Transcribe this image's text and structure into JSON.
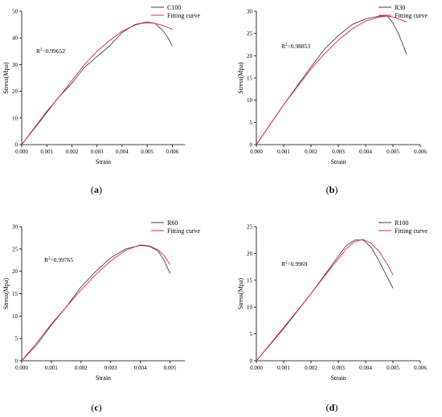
{
  "chart_data": [
    {
      "type": "line",
      "caption": "(a)",
      "xlabel": "Strain",
      "ylabel": "Stress(Mpa)",
      "xlim": [
        0,
        0.0065
      ],
      "ylim": [
        0,
        50
      ],
      "xticks": [
        "0.000",
        "0.001",
        "0.002",
        "0.003",
        "0.004",
        "0.005",
        "0.006"
      ],
      "yticks": [
        "0",
        "10",
        "20",
        "30",
        "40",
        "50"
      ],
      "annotation": "R²=0.99652",
      "legend_position": "top-right",
      "series": [
        {
          "name": "C100",
          "color": "#3b4254",
          "x": [
            0,
            0.001,
            0.0014,
            0.002,
            0.0025,
            0.003,
            0.0035,
            0.004,
            0.0045,
            0.005,
            0.0053,
            0.0056,
            0.0058,
            0.006
          ],
          "y": [
            0,
            12,
            17,
            23,
            29,
            33,
            37,
            42,
            45,
            46,
            45.5,
            43,
            40.5,
            37
          ]
        },
        {
          "name": "Fitting curve",
          "color": "#e5282b",
          "x": [
            0,
            0.001,
            0.0015,
            0.002,
            0.0025,
            0.003,
            0.0035,
            0.004,
            0.0045,
            0.0048,
            0.0052,
            0.0056,
            0.006
          ],
          "y": [
            0,
            12.5,
            18,
            24,
            30,
            35,
            39,
            42.5,
            44.8,
            45.5,
            45.6,
            44.8,
            43.2
          ]
        }
      ]
    },
    {
      "type": "line",
      "caption": "(b)",
      "xlabel": "Strain",
      "ylabel": "Stress(Mpa)",
      "xlim": [
        0,
        0.006
      ],
      "ylim": [
        0,
        30
      ],
      "xticks": [
        "0.000",
        "0.001",
        "0.002",
        "0.003",
        "0.004",
        "0.005",
        "0.006"
      ],
      "yticks": [
        "0",
        "5",
        "10",
        "15",
        "20",
        "25",
        "30"
      ],
      "annotation": "R²=0.98853",
      "legend_position": "top-right",
      "series": [
        {
          "name": "R30",
          "color": "#3b4254",
          "x": [
            0,
            0.001,
            0.002,
            0.0025,
            0.003,
            0.0035,
            0.004,
            0.0045,
            0.0048,
            0.005,
            0.0052,
            0.0055
          ],
          "y": [
            0,
            9,
            17.5,
            21.5,
            24.5,
            27,
            28.3,
            28.9,
            28.9,
            27.3,
            25,
            20.3
          ]
        },
        {
          "name": "Fitting curve",
          "color": "#e5282b",
          "x": [
            0,
            0.001,
            0.002,
            0.0025,
            0.003,
            0.0035,
            0.004,
            0.0045,
            0.0048,
            0.005,
            0.0055
          ],
          "y": [
            0,
            9,
            17,
            20.5,
            23.5,
            26,
            27.8,
            28.7,
            28.9,
            28.7,
            27.6
          ]
        }
      ]
    },
    {
      "type": "line",
      "caption": "(c)",
      "xlabel": "Strain",
      "ylabel": "Stress(Mpa)",
      "xlim": [
        0,
        0.0055
      ],
      "ylim": [
        0,
        30
      ],
      "xticks": [
        "0.000",
        "0.001",
        "0.002",
        "0.003",
        "0.004",
        "0.005"
      ],
      "yticks": [
        "0",
        "5",
        "10",
        "15",
        "20",
        "25",
        "30"
      ],
      "annotation": "R²=0.99765",
      "legend_position": "top-right",
      "series": [
        {
          "name": "R60",
          "color": "#3b4254",
          "x": [
            0,
            0.0005,
            0.001,
            0.0015,
            0.002,
            0.0025,
            0.003,
            0.0035,
            0.004,
            0.0043,
            0.0046,
            0.0048,
            0.005
          ],
          "y": [
            0,
            3.5,
            8,
            12,
            16.5,
            20,
            23,
            25,
            25.8,
            25.6,
            24.5,
            22.5,
            19.5
          ]
        },
        {
          "name": "Fitting curve",
          "color": "#e5282b",
          "x": [
            0,
            0.0005,
            0.001,
            0.0015,
            0.002,
            0.0025,
            0.003,
            0.0035,
            0.004,
            0.0043,
            0.0046,
            0.0048,
            0.005
          ],
          "y": [
            0,
            4,
            8.2,
            12,
            15.8,
            19.3,
            22.3,
            24.7,
            25.9,
            25.7,
            24.8,
            23.5,
            21.5
          ]
        }
      ]
    },
    {
      "type": "line",
      "caption": "(d)",
      "xlabel": "Strain",
      "ylabel": "Stress(Mpa)",
      "xlim": [
        0,
        0.006
      ],
      "ylim": [
        0,
        25
      ],
      "xticks": [
        "0.000",
        "0.001",
        "0.002",
        "0.003",
        "0.004",
        "0.005",
        "0.006"
      ],
      "yticks": [
        "0",
        "5",
        "10",
        "15",
        "20",
        "25"
      ],
      "annotation": "R²=0.9969",
      "legend_position": "top-right",
      "series": [
        {
          "name": "R100",
          "color": "#3b4254",
          "x": [
            0,
            0.001,
            0.002,
            0.0025,
            0.003,
            0.0033,
            0.0036,
            0.0039,
            0.0042,
            0.0045,
            0.0048,
            0.005
          ],
          "y": [
            0,
            6,
            12.5,
            16,
            19.5,
            21.5,
            22.5,
            22.5,
            21.2,
            18.5,
            15.5,
            13.5
          ]
        },
        {
          "name": "Fitting curve",
          "color": "#e5282b",
          "x": [
            0,
            0.001,
            0.002,
            0.0025,
            0.003,
            0.0033,
            0.0036,
            0.0039,
            0.0042,
            0.0045,
            0.0048,
            0.005
          ],
          "y": [
            0,
            6.2,
            12.5,
            15.8,
            19,
            20.9,
            22.2,
            22.6,
            21.9,
            20.3,
            17.9,
            16
          ]
        }
      ]
    }
  ]
}
